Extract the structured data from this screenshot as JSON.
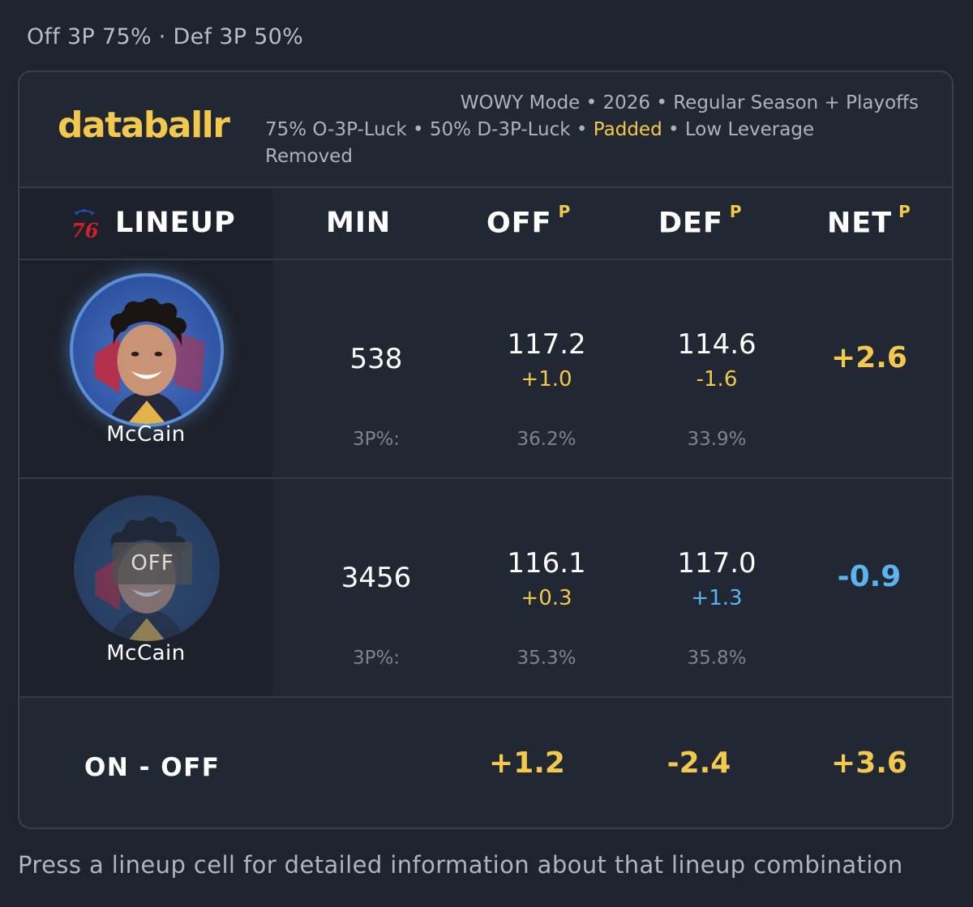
{
  "filter_summary": "Off 3P 75% · Def 3P 50%",
  "brand": {
    "logo_text": "databallr"
  },
  "meta": {
    "line1": "WOWY Mode • 2026 • Regular Season + Playoffs",
    "line2_prefix": "75% O-3P-Luck • 50% D-3P-Luck • ",
    "line2_highlight": "Padded",
    "line2_suffix": " • Low Leverage",
    "line3": "Removed"
  },
  "table": {
    "team_logo": "76",
    "columns": {
      "lineup": "LINEUP",
      "min": "MIN",
      "off": "OFF",
      "def": "DEF",
      "net": "NET",
      "padded_marker": "P"
    },
    "rows": [
      {
        "state": "on",
        "player": "McCain",
        "min": "538",
        "off": "117.2",
        "off_delta": "+1.0",
        "def": "114.6",
        "def_delta": "-1.6",
        "net": "+2.6",
        "threep_label": "3P%:",
        "off_3p": "36.2%",
        "def_3p": "33.9%"
      },
      {
        "state": "off",
        "off_badge": "OFF",
        "player": "McCain",
        "min": "3456",
        "off": "116.1",
        "off_delta": "+0.3",
        "def": "117.0",
        "def_delta": "+1.3",
        "net": "-0.9",
        "threep_label": "3P%:",
        "off_3p": "35.3%",
        "def_3p": "35.8%"
      }
    ],
    "on_off": {
      "label": "ON - OFF",
      "off": "+1.2",
      "def": "-2.4",
      "net": "+3.6"
    }
  },
  "footer_hint": "Press a lineup cell for detailed information about that lineup combination",
  "colors": {
    "accent_yellow": "#f2c94c",
    "accent_blue": "#5bb4f0",
    "background": "#1f232d"
  }
}
